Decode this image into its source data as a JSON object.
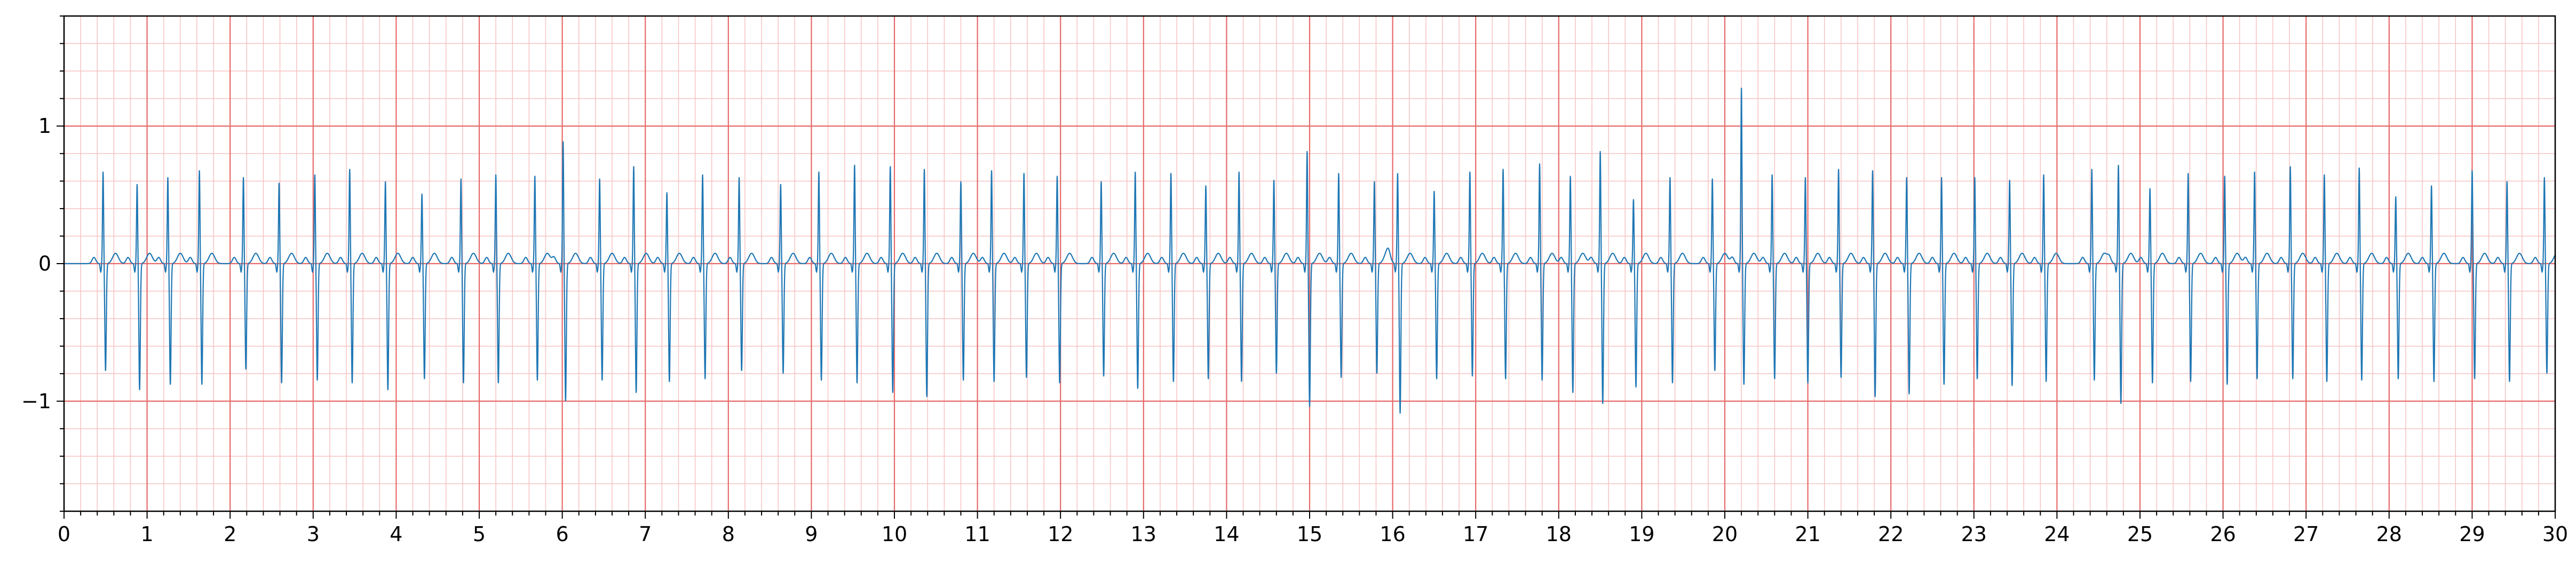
{
  "chart_data": {
    "type": "line",
    "title": "",
    "xlabel": "",
    "ylabel": "",
    "xlim": [
      0,
      30
    ],
    "ylim": [
      -1.8,
      1.8
    ],
    "x_ticks": [
      0,
      1,
      2,
      3,
      4,
      5,
      6,
      7,
      8,
      9,
      10,
      11,
      12,
      13,
      14,
      15,
      16,
      17,
      18,
      19,
      20,
      21,
      22,
      23,
      24,
      25,
      26,
      27,
      28,
      29,
      30
    ],
    "x_tick_labels": [
      "0",
      "1",
      "2",
      "3",
      "4",
      "5",
      "6",
      "7",
      "8",
      "9",
      "10",
      "11",
      "12",
      "13",
      "14",
      "15",
      "16",
      "17",
      "18",
      "19",
      "20",
      "21",
      "22",
      "23",
      "24",
      "25",
      "26",
      "27",
      "28",
      "29",
      "30"
    ],
    "y_ticks": [
      -1,
      0,
      1
    ],
    "y_tick_labels": [
      "−1",
      "0",
      "1"
    ],
    "grid": true,
    "major_grid_step_x": 1,
    "minor_grid_step_x": 0.2,
    "major_grid_step_y": 1,
    "minor_grid_step_y": 0.2,
    "legend": "none",
    "series": [
      {
        "line_color": "#1f77b4",
        "beats": [
          {
            "t": 0.47,
            "r": 0.67,
            "s": -0.78
          },
          {
            "t": 0.88,
            "r": 0.58,
            "s": -0.92
          },
          {
            "t": 1.25,
            "r": 0.63,
            "s": -0.88
          },
          {
            "t": 1.63,
            "r": 0.68,
            "s": -0.88
          },
          {
            "t": 2.16,
            "r": 0.63,
            "s": -0.77
          },
          {
            "t": 2.59,
            "r": 0.59,
            "s": -0.87
          },
          {
            "t": 3.02,
            "r": 0.65,
            "s": -0.85
          },
          {
            "t": 3.44,
            "r": 0.69,
            "s": -0.87
          },
          {
            "t": 3.87,
            "r": 0.6,
            "s": -0.92
          },
          {
            "t": 4.31,
            "r": 0.51,
            "s": -0.84
          },
          {
            "t": 4.78,
            "r": 0.62,
            "s": -0.87
          },
          {
            "t": 5.2,
            "r": 0.65,
            "s": -0.87
          },
          {
            "t": 5.67,
            "r": 0.64,
            "s": -0.85
          },
          {
            "t": 6.01,
            "r": 0.89,
            "s": -1.0
          },
          {
            "t": 6.45,
            "r": 0.62,
            "s": -0.85
          },
          {
            "t": 6.86,
            "r": 0.71,
            "s": -0.94
          },
          {
            "t": 7.26,
            "r": 0.52,
            "s": -0.86
          },
          {
            "t": 7.69,
            "r": 0.65,
            "s": -0.84
          },
          {
            "t": 8.13,
            "r": 0.63,
            "s": -0.78
          },
          {
            "t": 8.63,
            "r": 0.58,
            "s": -0.8
          },
          {
            "t": 9.09,
            "r": 0.67,
            "s": -0.85
          },
          {
            "t": 9.52,
            "r": 0.72,
            "s": -0.87
          },
          {
            "t": 9.95,
            "r": 0.71,
            "s": -0.94
          },
          {
            "t": 10.36,
            "r": 0.69,
            "s": -0.97
          },
          {
            "t": 10.8,
            "r": 0.6,
            "s": -0.85
          },
          {
            "t": 11.17,
            "r": 0.68,
            "s": -0.86
          },
          {
            "t": 11.56,
            "r": 0.66,
            "s": -0.83
          },
          {
            "t": 11.96,
            "r": 0.64,
            "s": -0.87
          },
          {
            "t": 12.49,
            "r": 0.6,
            "s": -0.82
          },
          {
            "t": 12.9,
            "r": 0.67,
            "s": -0.91
          },
          {
            "t": 13.33,
            "r": 0.66,
            "s": -0.86
          },
          {
            "t": 13.75,
            "r": 0.57,
            "s": -0.84
          },
          {
            "t": 14.15,
            "r": 0.67,
            "s": -0.86
          },
          {
            "t": 14.57,
            "r": 0.61,
            "s": -0.8
          },
          {
            "t": 14.97,
            "r": 0.82,
            "s": -1.04
          },
          {
            "t": 15.35,
            "r": 0.66,
            "s": -0.83
          },
          {
            "t": 15.78,
            "r": 0.6,
            "s": -0.8
          },
          {
            "t": 16.06,
            "r": 0.66,
            "s": -1.09
          },
          {
            "t": 16.5,
            "r": 0.53,
            "s": -0.84
          },
          {
            "t": 16.93,
            "r": 0.67,
            "s": -0.82
          },
          {
            "t": 17.33,
            "r": 0.69,
            "s": -0.84
          },
          {
            "t": 17.77,
            "r": 0.73,
            "s": -0.85
          },
          {
            "t": 18.14,
            "r": 0.64,
            "s": -0.94
          },
          {
            "t": 18.5,
            "r": 0.82,
            "s": -1.02
          },
          {
            "t": 18.9,
            "r": 0.47,
            "s": -0.9
          },
          {
            "t": 19.34,
            "r": 0.63,
            "s": -0.87
          },
          {
            "t": 19.85,
            "r": 0.62,
            "s": -0.78
          },
          {
            "t": 20.2,
            "r": 1.28,
            "s": -0.88
          },
          {
            "t": 20.57,
            "r": 0.65,
            "s": -0.84
          },
          {
            "t": 20.97,
            "r": 0.63,
            "s": -0.87
          },
          {
            "t": 21.37,
            "r": 0.69,
            "s": -0.83
          },
          {
            "t": 21.78,
            "r": 0.68,
            "s": -0.97
          },
          {
            "t": 22.19,
            "r": 0.63,
            "s": -0.95
          },
          {
            "t": 22.61,
            "r": 0.63,
            "s": -0.88
          },
          {
            "t": 23.01,
            "r": 0.63,
            "s": -0.84
          },
          {
            "t": 23.43,
            "r": 0.61,
            "s": -0.89
          },
          {
            "t": 23.84,
            "r": 0.65,
            "s": -0.86
          },
          {
            "t": 24.42,
            "r": 0.69,
            "s": -0.85
          },
          {
            "t": 24.74,
            "r": 0.72,
            "s": -1.02
          },
          {
            "t": 25.12,
            "r": 0.55,
            "s": -0.87
          },
          {
            "t": 25.58,
            "r": 0.66,
            "s": -0.86
          },
          {
            "t": 26.02,
            "r": 0.64,
            "s": -0.88
          },
          {
            "t": 26.38,
            "r": 0.67,
            "s": -0.84
          },
          {
            "t": 26.81,
            "r": 0.71,
            "s": -0.84
          },
          {
            "t": 27.22,
            "r": 0.65,
            "s": -0.86
          },
          {
            "t": 27.64,
            "r": 0.7,
            "s": -0.85
          },
          {
            "t": 28.08,
            "r": 0.49,
            "s": -0.84
          },
          {
            "t": 28.51,
            "r": 0.57,
            "s": -0.86
          },
          {
            "t": 29.0,
            "r": 0.68,
            "s": -0.84
          },
          {
            "t": 29.42,
            "r": 0.6,
            "s": -0.86
          },
          {
            "t": 29.87,
            "r": 0.63,
            "s": -0.8
          }
        ]
      }
    ]
  },
  "colors": {
    "major_grid": "#e66a6a",
    "minor_grid": "#f7c2c2",
    "trace": "#1f77b4",
    "axes": "#000000"
  }
}
